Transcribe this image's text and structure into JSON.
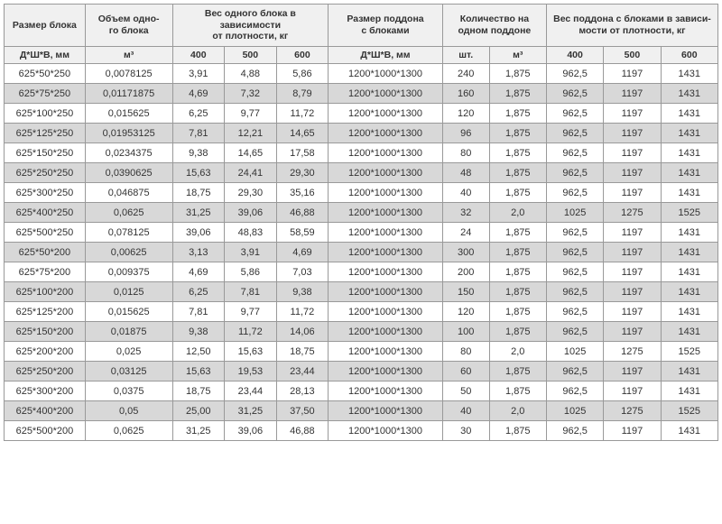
{
  "table": {
    "type": "table",
    "headers_top": [
      {
        "label": "Размер блока",
        "rowspan": 2,
        "colspan": 1
      },
      {
        "label": "Объем одно-\nго блока",
        "rowspan": 2,
        "colspan": 1
      },
      {
        "label": "Вес одного блока в зависимости\nот плотности, кг",
        "rowspan": 1,
        "colspan": 3
      },
      {
        "label": "Размер поддона\nс блоками",
        "rowspan": 2,
        "colspan": 1
      },
      {
        "label": "Количество на\nодном поддоне",
        "rowspan": 1,
        "colspan": 2
      },
      {
        "label": "Вес поддона с блоками в зависи-\nмости от плотности, кг",
        "rowspan": 1,
        "colspan": 3
      }
    ],
    "headers_sub": [
      "Д*Ш*В, мм",
      "м³",
      "400",
      "500",
      "600",
      "Д*Ш*В, мм",
      "шт.",
      "м³",
      "400",
      "500",
      "600"
    ],
    "rows": [
      [
        "625*50*250",
        "0,0078125",
        "3,91",
        "4,88",
        "5,86",
        "1200*1000*1300",
        "240",
        "1,875",
        "962,5",
        "1197",
        "1431"
      ],
      [
        "625*75*250",
        "0,01171875",
        "4,69",
        "7,32",
        "8,79",
        "1200*1000*1300",
        "160",
        "1,875",
        "962,5",
        "1197",
        "1431"
      ],
      [
        "625*100*250",
        "0,015625",
        "6,25",
        "9,77",
        "11,72",
        "1200*1000*1300",
        "120",
        "1,875",
        "962,5",
        "1197",
        "1431"
      ],
      [
        "625*125*250",
        "0,01953125",
        "7,81",
        "12,21",
        "14,65",
        "1200*1000*1300",
        "96",
        "1,875",
        "962,5",
        "1197",
        "1431"
      ],
      [
        "625*150*250",
        "0,0234375",
        "9,38",
        "14,65",
        "17,58",
        "1200*1000*1300",
        "80",
        "1,875",
        "962,5",
        "1197",
        "1431"
      ],
      [
        "625*250*250",
        "0,0390625",
        "15,63",
        "24,41",
        "29,30",
        "1200*1000*1300",
        "48",
        "1,875",
        "962,5",
        "1197",
        "1431"
      ],
      [
        "625*300*250",
        "0,046875",
        "18,75",
        "29,30",
        "35,16",
        "1200*1000*1300",
        "40",
        "1,875",
        "962,5",
        "1197",
        "1431"
      ],
      [
        "625*400*250",
        "0,0625",
        "31,25",
        "39,06",
        "46,88",
        "1200*1000*1300",
        "32",
        "2,0",
        "1025",
        "1275",
        "1525"
      ],
      [
        "625*500*250",
        "0,078125",
        "39,06",
        "48,83",
        "58,59",
        "1200*1000*1300",
        "24",
        "1,875",
        "962,5",
        "1197",
        "1431"
      ],
      [
        "625*50*200",
        "0,00625",
        "3,13",
        "3,91",
        "4,69",
        "1200*1000*1300",
        "300",
        "1,875",
        "962,5",
        "1197",
        "1431"
      ],
      [
        "625*75*200",
        "0,009375",
        "4,69",
        "5,86",
        "7,03",
        "1200*1000*1300",
        "200",
        "1,875",
        "962,5",
        "1197",
        "1431"
      ],
      [
        "625*100*200",
        "0,0125",
        "6,25",
        "7,81",
        "9,38",
        "1200*1000*1300",
        "150",
        "1,875",
        "962,5",
        "1197",
        "1431"
      ],
      [
        "625*125*200",
        "0,015625",
        "7,81",
        "9,77",
        "11,72",
        "1200*1000*1300",
        "120",
        "1,875",
        "962,5",
        "1197",
        "1431"
      ],
      [
        "625*150*200",
        "0,01875",
        "9,38",
        "11,72",
        "14,06",
        "1200*1000*1300",
        "100",
        "1,875",
        "962,5",
        "1197",
        "1431"
      ],
      [
        "625*200*200",
        "0,025",
        "12,50",
        "15,63",
        "18,75",
        "1200*1000*1300",
        "80",
        "2,0",
        "1025",
        "1275",
        "1525"
      ],
      [
        "625*250*200",
        "0,03125",
        "15,63",
        "19,53",
        "23,44",
        "1200*1000*1300",
        "60",
        "1,875",
        "962,5",
        "1197",
        "1431"
      ],
      [
        "625*300*200",
        "0,0375",
        "18,75",
        "23,44",
        "28,13",
        "1200*1000*1300",
        "50",
        "1,875",
        "962,5",
        "1197",
        "1431"
      ],
      [
        "625*400*200",
        "0,05",
        "25,00",
        "31,25",
        "37,50",
        "1200*1000*1300",
        "40",
        "2,0",
        "1025",
        "1275",
        "1525"
      ],
      [
        "625*500*200",
        "0,0625",
        "31,25",
        "39,06",
        "46,88",
        "1200*1000*1300",
        "30",
        "1,875",
        "962,5",
        "1197",
        "1431"
      ]
    ],
    "col_widths": [
      "78px",
      "84px",
      "50px",
      "50px",
      "50px",
      "110px",
      "45px",
      "55px",
      "55px",
      "55px",
      "55px"
    ],
    "background_color": "#ffffff",
    "alt_row_color": "#d8d8d8",
    "border_color": "#999999",
    "header_bg": "#f0f0f0",
    "font_family": "Arial",
    "body_fontsize": 11,
    "header_fontsize": 10.5
  }
}
